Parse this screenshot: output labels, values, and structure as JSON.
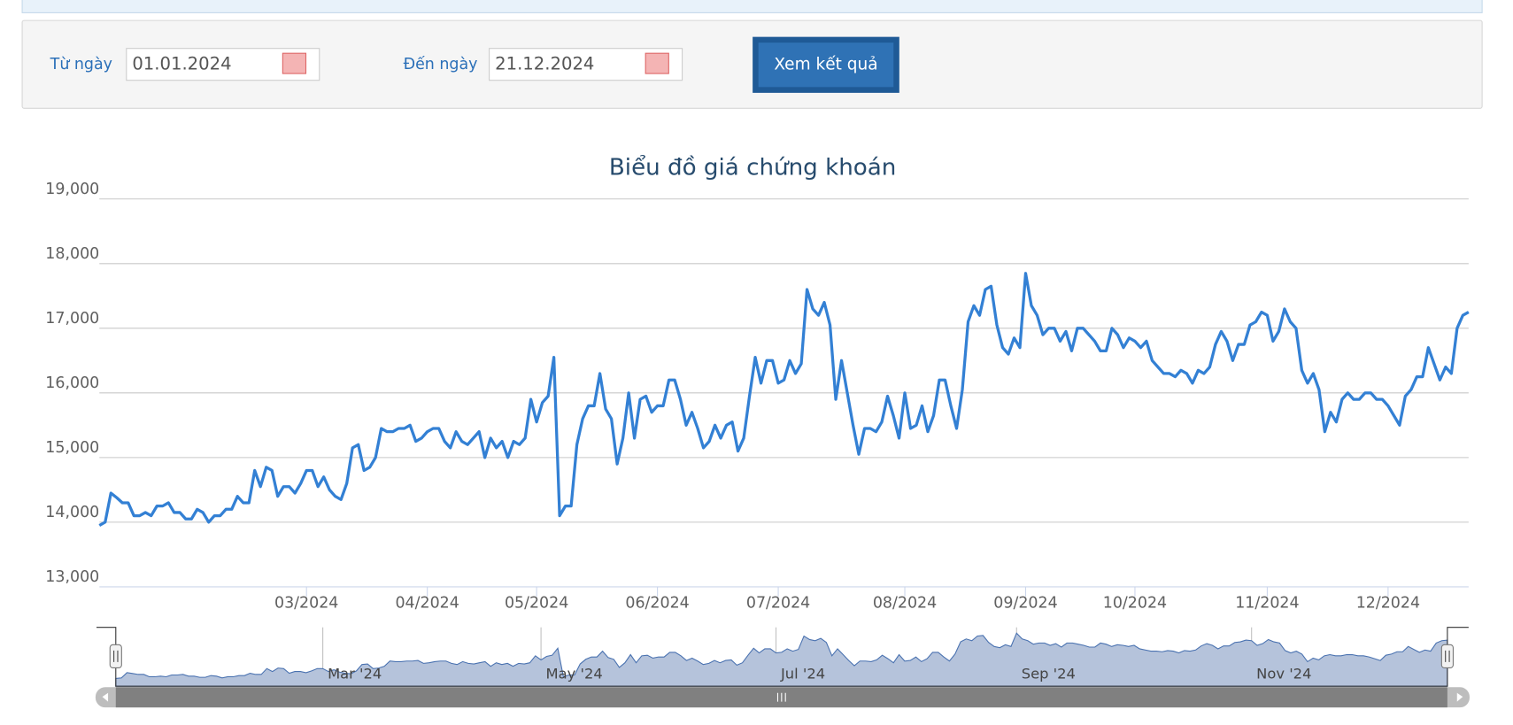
{
  "filter": {
    "from_label": "Từ ngày",
    "from_value": "01.01.2024",
    "to_label": "Đến ngày",
    "to_value": "21.12.2024",
    "button": "Xem kết quả"
  },
  "chart_data": {
    "type": "line",
    "title": "Biểu đồ giá chứng khoán",
    "series": [
      {
        "color": "#3380d4",
        "values": [
          13950,
          14000,
          14450,
          14380,
          14300,
          14300,
          14100,
          14100,
          14150,
          14100,
          14250,
          14250,
          14300,
          14150,
          14150,
          14050,
          14050,
          14200,
          14150,
          14000,
          14100,
          14100,
          14200,
          14200,
          14400,
          14300,
          14300,
          14800,
          14550,
          14850,
          14800,
          14400,
          14550,
          14550,
          14450,
          14600,
          14800,
          14800,
          14550,
          14700,
          14500,
          14400,
          14350,
          14600,
          15150,
          15200,
          14800,
          14850,
          15000,
          15450,
          15400,
          15400,
          15450,
          15450,
          15500,
          15250,
          15300,
          15400,
          15450,
          15450,
          15250,
          15150,
          15400,
          15250,
          15200,
          15300,
          15400,
          15000,
          15300,
          15150,
          15250,
          15000,
          15250,
          15200,
          15300,
          15900,
          15550,
          15850,
          15950,
          16550,
          14100,
          14250,
          14250,
          15200,
          15600,
          15800,
          15800,
          16300,
          15750,
          15600,
          14900,
          15300,
          16000,
          15300,
          15900,
          15950,
          15700,
          15800,
          15800,
          16200,
          16200,
          15900,
          15500,
          15700,
          15450,
          15150,
          15250,
          15500,
          15300,
          15500,
          15550,
          15100,
          15300,
          15950,
          16550,
          16150,
          16500,
          16500,
          16150,
          16200,
          16500,
          16300,
          16450,
          17600,
          17300,
          17200,
          17400,
          17050,
          15900,
          16500,
          16000,
          15500,
          15050,
          15450,
          15450,
          15400,
          15550,
          15950,
          15650,
          15300,
          16000,
          15450,
          15500,
          15800,
          15400,
          15650,
          16200,
          16200,
          15800,
          15450,
          16050,
          17100,
          17350,
          17200,
          17600,
          17650,
          17050,
          16700,
          16600,
          16850,
          16700,
          17850,
          17350,
          17200,
          16900,
          17000,
          17000,
          16800,
          16950,
          16650,
          17000,
          17000,
          16900,
          16800,
          16650,
          16650,
          17000,
          16900,
          16700,
          16850,
          16800,
          16700,
          16800,
          16500,
          16400,
          16300,
          16300,
          16250,
          16350,
          16300,
          16150,
          16350,
          16300,
          16400,
          16750,
          16950,
          16800,
          16500,
          16750,
          16750,
          17050,
          17100,
          17250,
          17200,
          16800,
          16950,
          17300,
          17100,
          17000,
          16350,
          16150,
          16300,
          16050,
          15400,
          15700,
          15550,
          15900,
          16000,
          15900,
          15900,
          16000,
          16000,
          15900,
          15900,
          15800,
          15650,
          15500,
          15950,
          16050,
          16250,
          16250,
          16700,
          16450,
          16200,
          16400,
          16300,
          17000,
          17200,
          17250
        ]
      }
    ],
    "xlim": [
      0,
      238
    ],
    "xticks": [
      {
        "value": 36,
        "label": "03/2024"
      },
      {
        "value": 57,
        "label": "04/2024"
      },
      {
        "value": 76,
        "label": "05/2024"
      },
      {
        "value": 97,
        "label": "06/2024"
      },
      {
        "value": 118,
        "label": "07/2024"
      },
      {
        "value": 140,
        "label": "08/2024"
      },
      {
        "value": 161,
        "label": "09/2024"
      },
      {
        "value": 180,
        "label": "10/2024"
      },
      {
        "value": 203,
        "label": "11/2024"
      },
      {
        "value": 224,
        "label": "12/2024"
      }
    ],
    "ylim": [
      13000,
      19000
    ],
    "yticks": [
      {
        "value": 13000,
        "label": "13,000"
      },
      {
        "value": 14000,
        "label": "14,000"
      },
      {
        "value": 15000,
        "label": "15,000"
      },
      {
        "value": 16000,
        "label": "16,000"
      },
      {
        "value": 17000,
        "label": "17,000"
      },
      {
        "value": 18000,
        "label": "18,000"
      },
      {
        "value": 19000,
        "label": "19,000"
      }
    ],
    "grid": true,
    "navigator_ticks": [
      {
        "value": 37,
        "label": "Mar '24"
      },
      {
        "value": 76,
        "label": "May '24"
      },
      {
        "value": 118,
        "label": "Jul '24"
      },
      {
        "value": 161,
        "label": "Sep '24"
      },
      {
        "value": 203,
        "label": "Nov '24"
      }
    ]
  }
}
